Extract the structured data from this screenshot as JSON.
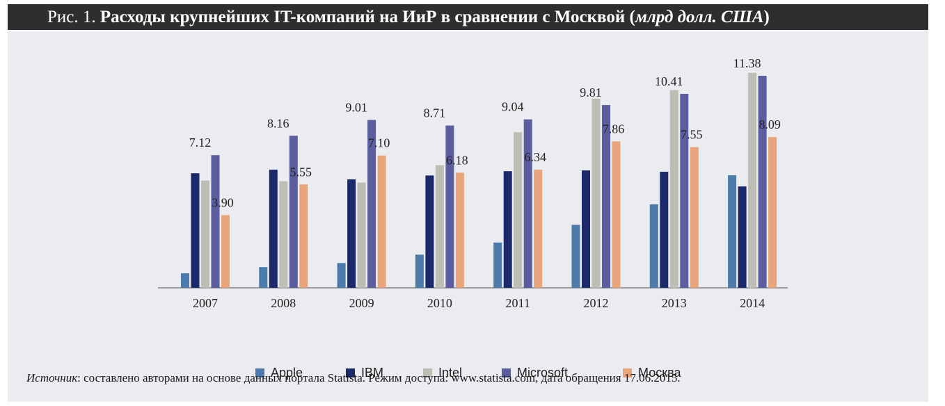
{
  "figure": {
    "label": "Рис. 1.",
    "title_main": "Расходы крупнейших IT-компаний на ИиР в сравнении с Москвой (",
    "title_units": "млрд долл. США",
    "title_close": ")"
  },
  "source": {
    "label": "Источник",
    "text": ": составлено авторами на основе данных портала Statista. Режим доступа: www.statista.com, дата обращения 17.06.2015."
  },
  "colors": {
    "Apple": "#4a7bab",
    "IBM": "#1c2a6b",
    "Intel": "#bdbdb4",
    "Microsoft": "#5b5d9f",
    "Москва": "#e8a57b"
  },
  "chart_data": {
    "type": "bar",
    "title": "Расходы крупнейших IT-компаний на ИиР в сравнении с Москвой (млрд долл. США)",
    "xlabel": "",
    "ylabel": "",
    "ylim": [
      0,
      12
    ],
    "grid": false,
    "legend_position": "bottom",
    "categories": [
      "2007",
      "2008",
      "2009",
      "2010",
      "2011",
      "2012",
      "2013",
      "2014"
    ],
    "series": [
      {
        "name": "Apple",
        "values": [
          0.78,
          1.11,
          1.33,
          1.78,
          2.43,
          3.38,
          4.48,
          6.04
        ],
        "labels": null
      },
      {
        "name": "IBM",
        "values": [
          6.15,
          6.34,
          5.82,
          6.03,
          6.26,
          6.3,
          6.23,
          5.44
        ],
        "labels": null
      },
      {
        "name": "Intel",
        "values": [
          5.76,
          5.72,
          5.65,
          6.58,
          8.35,
          10.15,
          10.61,
          11.54
        ],
        "labels": null
      },
      {
        "name": "Microsoft",
        "values": [
          7.12,
          8.16,
          9.01,
          8.71,
          9.04,
          9.81,
          10.41,
          11.38
        ],
        "labels": [
          "7.12",
          "8.16",
          "9.01",
          "8.71",
          "9.04",
          "9.81",
          "10.41",
          "11.38"
        ]
      },
      {
        "name": "Москва",
        "values": [
          3.9,
          5.55,
          7.1,
          6.18,
          6.34,
          7.86,
          7.55,
          8.09
        ],
        "labels": [
          "3.90",
          "5.55",
          "7.10",
          "6.18",
          "6.34",
          "7.86",
          "7.55",
          "8.09"
        ]
      }
    ]
  }
}
